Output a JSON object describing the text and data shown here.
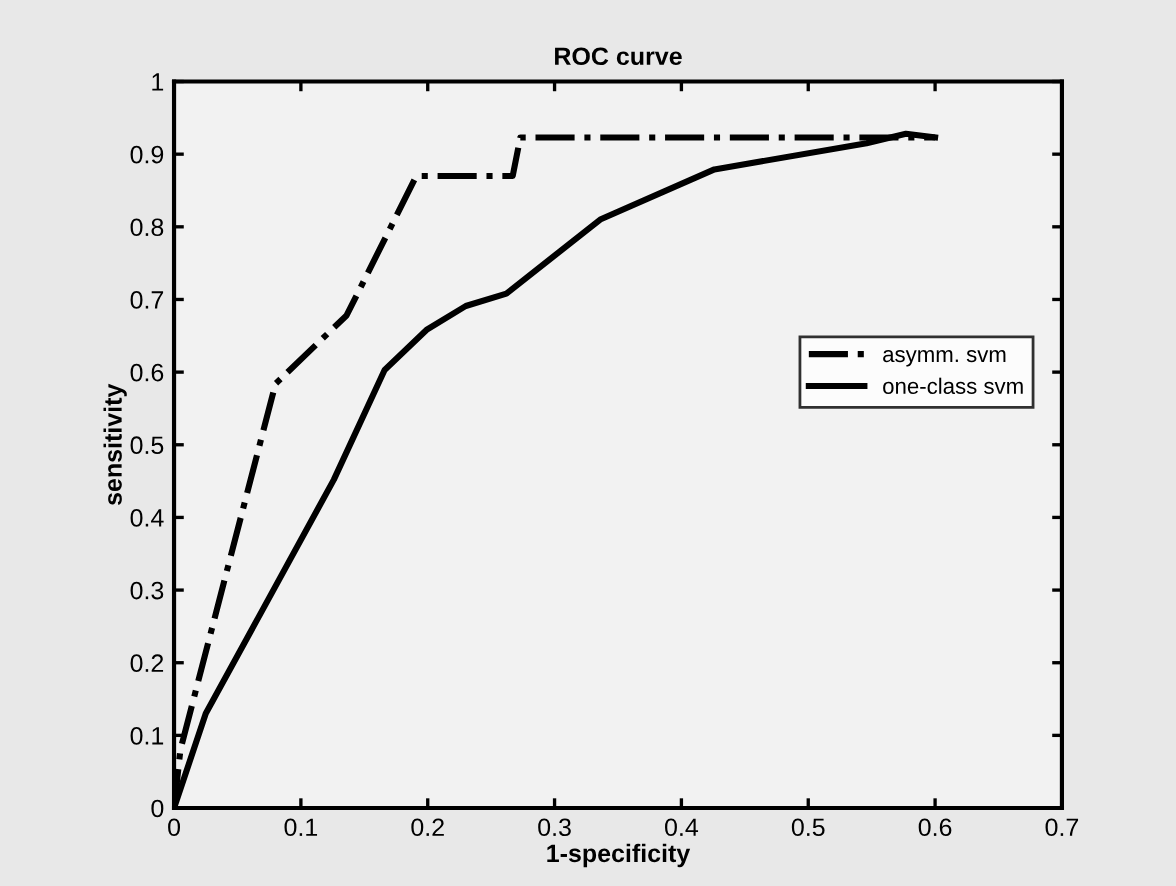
{
  "chart_data": {
    "type": "line",
    "title": "ROC curve",
    "xlabel": "1-specificity",
    "ylabel": "sensitivity",
    "xlim": [
      0,
      0.7
    ],
    "ylim": [
      0,
      1
    ],
    "xticks": [
      0,
      0.1,
      0.2,
      0.3,
      0.4,
      0.5,
      0.6,
      0.7
    ],
    "yticks": [
      0,
      0.1,
      0.2,
      0.3,
      0.4,
      0.5,
      0.6,
      0.7,
      0.8,
      0.9,
      1
    ],
    "grid": false,
    "legend": "right",
    "marker": "none",
    "series": [
      {
        "name": "asymm. svm",
        "color": "#000000",
        "line_style": "dashdot",
        "x": [
          0,
          0.005,
          0.08,
          0.136,
          0.191,
          0.267,
          0.273,
          0.6
        ],
        "values": [
          0,
          0.08,
          0.584,
          0.678,
          0.87,
          0.87,
          0.923,
          0.923
        ]
      },
      {
        "name": "one-class svm",
        "color": "#000000",
        "line_style": "solid",
        "x": [
          0,
          0.025,
          0.126,
          0.166,
          0.199,
          0.23,
          0.262,
          0.336,
          0.426,
          0.546,
          0.577,
          0.6
        ],
        "values": [
          0,
          0.13,
          0.452,
          0.603,
          0.658,
          0.691,
          0.708,
          0.81,
          0.879,
          0.915,
          0.928,
          0.923
        ]
      }
    ]
  }
}
